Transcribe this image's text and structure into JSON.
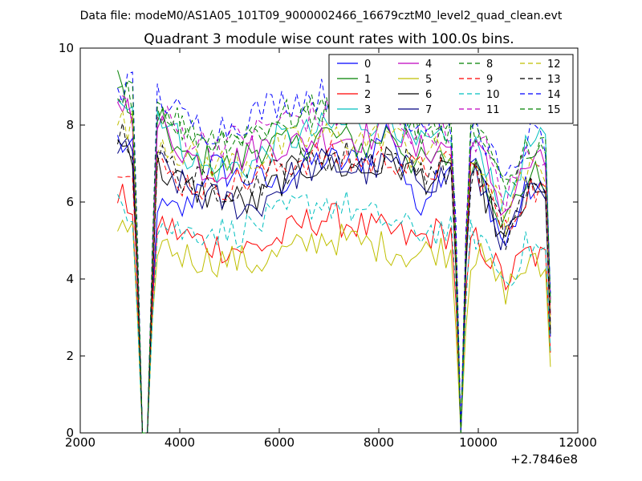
{
  "header": {
    "data_file": "Data file: modeM0/AS1A05_101T09_9000002466_16679cztM0_level2_quad_clean.evt"
  },
  "chart_data": {
    "type": "line",
    "title": "Quadrant 3 module wise count rates with 100.0s bins.",
    "xlabel": "",
    "ylabel": "",
    "x_offset_label": "+2.7846e8",
    "xlim": [
      2000,
      12000
    ],
    "ylim": [
      0,
      10
    ],
    "x_ticks": [
      "2000",
      "4000",
      "6000",
      "8000",
      "10000",
      "12000"
    ],
    "y_ticks": [
      "0",
      "2",
      "4",
      "6",
      "8",
      "10"
    ],
    "grid": false,
    "legend_placement": "top-right",
    "legend_columns": 4,
    "gaps": [
      {
        "x": 3250,
        "y": 0
      },
      {
        "x": 3350,
        "y": 0
      },
      {
        "x": 9650,
        "y": 0
      }
    ],
    "x_range": [
      2750,
      11450
    ],
    "step": 100,
    "series": [
      {
        "name": "0",
        "color": "#0000ff",
        "dash": "solid",
        "profile": [
          7.6,
          7.0,
          5.7,
          5.8,
          7.0,
          6.7,
          6.6,
          6.4,
          6.9,
          7.1,
          7.0,
          7.2,
          8.0,
          5.8,
          6.7,
          7.4,
          6.6,
          4.8,
          6.4,
          6.0
        ]
      },
      {
        "name": "1",
        "color": "#008000",
        "dash": "solid",
        "profile": [
          9.3,
          7.3,
          8.0,
          7.0,
          7.1,
          6.9,
          7.4,
          7.5,
          7.4,
          7.8,
          7.6,
          7.4,
          7.9,
          7.0,
          7.0,
          7.3,
          6.9,
          5.4,
          6.7,
          6.6
        ]
      },
      {
        "name": "2",
        "color": "#ff0000",
        "dash": "solid",
        "profile": [
          6.1,
          5.8,
          5.4,
          5.1,
          4.9,
          4.8,
          4.8,
          5.0,
          5.4,
          5.6,
          5.5,
          5.3,
          5.2,
          5.0,
          5.2,
          5.2,
          4.9,
          3.9,
          4.7,
          4.4
        ]
      },
      {
        "name": "3",
        "color": "#00bfbf",
        "dash": "solid",
        "profile": [
          8.9,
          8.6,
          8.3,
          7.3,
          6.8,
          6.9,
          7.0,
          7.6,
          7.7,
          7.9,
          8.0,
          8.1,
          8.3,
          7.4,
          7.5,
          7.4,
          7.3,
          5.8,
          7.5,
          7.5
        ]
      },
      {
        "name": "4",
        "color": "#bf00bf",
        "dash": "solid",
        "profile": [
          8.7,
          8.2,
          7.9,
          7.3,
          6.8,
          7.0,
          7.4,
          7.5,
          7.5,
          7.7,
          7.7,
          7.7,
          8.0,
          7.3,
          7.4,
          7.5,
          7.2,
          5.7,
          7.0,
          6.9
        ]
      },
      {
        "name": "5",
        "color": "#bfbf00",
        "dash": "solid",
        "profile": [
          5.3,
          5.0,
          4.9,
          4.6,
          4.5,
          4.5,
          4.4,
          4.6,
          4.8,
          5.1,
          5.0,
          4.9,
          4.8,
          4.6,
          4.8,
          4.6,
          4.5,
          3.7,
          4.4,
          4.1
        ]
      },
      {
        "name": "6",
        "color": "#000000",
        "dash": "solid",
        "profile": [
          7.5,
          7.3,
          6.8,
          6.4,
          6.2,
          6.1,
          5.9,
          6.5,
          6.9,
          7.0,
          6.9,
          6.8,
          7.1,
          6.7,
          6.6,
          6.8,
          6.4,
          4.8,
          6.2,
          6.0
        ]
      },
      {
        "name": "7",
        "color": "#000080",
        "dash": "solid",
        "profile": [
          7.4,
          7.1,
          6.9,
          6.3,
          6.1,
          6.0,
          5.8,
          6.4,
          6.8,
          7.0,
          6.9,
          6.8,
          7.0,
          6.7,
          6.6,
          6.8,
          6.4,
          4.9,
          6.2,
          6.0
        ]
      },
      {
        "name": "8",
        "color": "#008000",
        "dash": "dashed",
        "profile": [
          8.8,
          8.7,
          8.4,
          7.9,
          7.6,
          7.7,
          7.8,
          8.0,
          8.2,
          8.3,
          8.4,
          8.5,
          8.6,
          7.8,
          7.9,
          7.9,
          7.8,
          6.2,
          7.6,
          7.5
        ]
      },
      {
        "name": "9",
        "color": "#ff0000",
        "dash": "dashed",
        "profile": [
          7.1,
          7.0,
          6.8,
          6.5,
          6.4,
          6.5,
          6.6,
          6.9,
          7.1,
          7.2,
          7.1,
          7.0,
          7.2,
          6.8,
          6.9,
          6.9,
          6.7,
          5.1,
          6.4,
          6.2
        ]
      },
      {
        "name": "10",
        "color": "#00bfbf",
        "dash": "dashed",
        "profile": [
          6.1,
          5.7,
          5.4,
          5.2,
          5.3,
          5.2,
          5.4,
          5.6,
          5.9,
          6.0,
          5.9,
          5.6,
          5.5,
          5.2,
          5.3,
          5.2,
          5.1,
          3.9,
          4.9,
          4.6
        ]
      },
      {
        "name": "11",
        "color": "#bf00bf",
        "dash": "dashed",
        "profile": [
          8.6,
          8.4,
          8.2,
          7.7,
          7.5,
          7.6,
          7.8,
          8.1,
          8.2,
          8.2,
          8.3,
          8.3,
          8.4,
          7.8,
          7.9,
          7.8,
          7.6,
          6.0,
          7.4,
          7.2
        ]
      },
      {
        "name": "12",
        "color": "#bfbf00",
        "dash": "dashed",
        "profile": [
          8.1,
          7.9,
          7.6,
          7.2,
          7.0,
          7.0,
          7.1,
          7.4,
          7.6,
          7.7,
          7.7,
          7.6,
          7.8,
          7.2,
          7.3,
          7.2,
          7.0,
          5.5,
          6.8,
          6.6
        ]
      },
      {
        "name": "13",
        "color": "#000000",
        "dash": "dashed",
        "profile": [
          7.7,
          7.4,
          7.1,
          6.6,
          6.4,
          6.4,
          6.5,
          6.8,
          7.0,
          7.2,
          7.2,
          7.1,
          7.2,
          6.9,
          6.9,
          6.9,
          6.6,
          5.0,
          6.4,
          6.2
        ]
      },
      {
        "name": "14",
        "color": "#0000ff",
        "dash": "dashed",
        "profile": [
          9.0,
          9.0,
          8.7,
          8.1,
          7.9,
          8.0,
          8.3,
          8.6,
          8.7,
          8.8,
          8.9,
          8.9,
          8.9,
          8.0,
          8.2,
          8.1,
          7.9,
          6.3,
          7.7,
          7.6
        ]
      },
      {
        "name": "15",
        "color": "#008000",
        "dash": "dashed",
        "profile": [
          8.8,
          8.6,
          8.3,
          7.9,
          7.7,
          7.7,
          7.9,
          8.2,
          8.3,
          8.4,
          8.5,
          8.5,
          8.6,
          7.9,
          8.0,
          7.9,
          7.7,
          6.1,
          7.6,
          7.4
        ]
      }
    ]
  }
}
